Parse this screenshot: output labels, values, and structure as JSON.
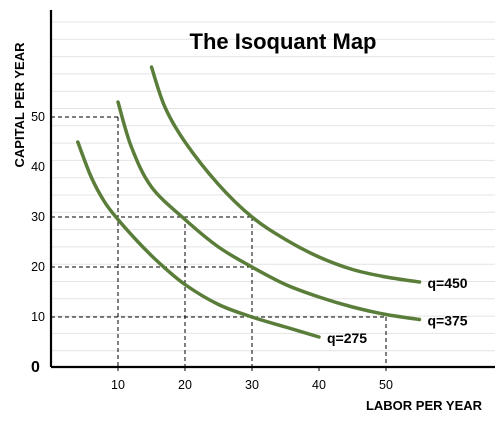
{
  "chart_data": {
    "type": "line",
    "title": "The Isoquant Map",
    "xlabel": "LABOR PER YEAR",
    "ylabel": "CAPITAL PER YEAR",
    "origin_label": "0",
    "xlim": [
      0,
      70
    ],
    "ylim": [
      0,
      60
    ],
    "x_ticks": [
      10,
      20,
      30,
      40,
      50
    ],
    "x_tick_labels": [
      "10",
      "20",
      "30",
      "40",
      "50"
    ],
    "y_ticks": [
      10,
      20,
      30,
      40,
      50
    ],
    "y_tick_labels": [
      "10",
      "20",
      "30",
      "40",
      "50"
    ],
    "grid": true,
    "series": [
      {
        "name": "q=275",
        "color": "#5a7d3a",
        "points": [
          [
            4,
            45
          ],
          [
            6,
            38
          ],
          [
            8,
            33
          ],
          [
            10,
            29.5
          ],
          [
            13,
            25
          ],
          [
            16,
            21
          ],
          [
            20,
            16.5
          ],
          [
            25,
            12.5
          ],
          [
            30,
            10
          ],
          [
            35,
            8
          ],
          [
            40,
            6
          ]
        ]
      },
      {
        "name": "q=375",
        "color": "#5a7d3a",
        "points": [
          [
            10,
            53
          ],
          [
            12,
            44
          ],
          [
            15,
            36
          ],
          [
            20,
            29.5
          ],
          [
            25,
            24
          ],
          [
            30,
            20
          ],
          [
            35,
            16.5
          ],
          [
            40,
            14
          ],
          [
            45,
            12
          ],
          [
            50,
            10.5
          ],
          [
            55,
            9.5
          ]
        ]
      },
      {
        "name": "q=450",
        "color": "#5a7d3a",
        "points": [
          [
            15,
            60
          ],
          [
            17,
            52
          ],
          [
            20,
            45
          ],
          [
            25,
            36.5
          ],
          [
            30,
            30
          ],
          [
            35,
            25.5
          ],
          [
            40,
            22
          ],
          [
            45,
            19.5
          ],
          [
            50,
            18
          ],
          [
            55,
            17
          ]
        ]
      }
    ],
    "reference_lines": [
      {
        "from": [
          0,
          50
        ],
        "to": [
          10,
          50
        ]
      },
      {
        "from": [
          10,
          50
        ],
        "to": [
          10,
          0
        ]
      },
      {
        "from": [
          0,
          30
        ],
        "to": [
          30,
          30
        ]
      },
      {
        "from": [
          0,
          20
        ],
        "to": [
          30,
          20
        ]
      },
      {
        "from": [
          0,
          10
        ],
        "to": [
          50,
          10
        ]
      },
      {
        "from": [
          20,
          30
        ],
        "to": [
          20,
          0
        ]
      },
      {
        "from": [
          30,
          30
        ],
        "to": [
          30,
          0
        ]
      },
      {
        "from": [
          50,
          10
        ],
        "to": [
          50,
          0
        ]
      }
    ]
  }
}
